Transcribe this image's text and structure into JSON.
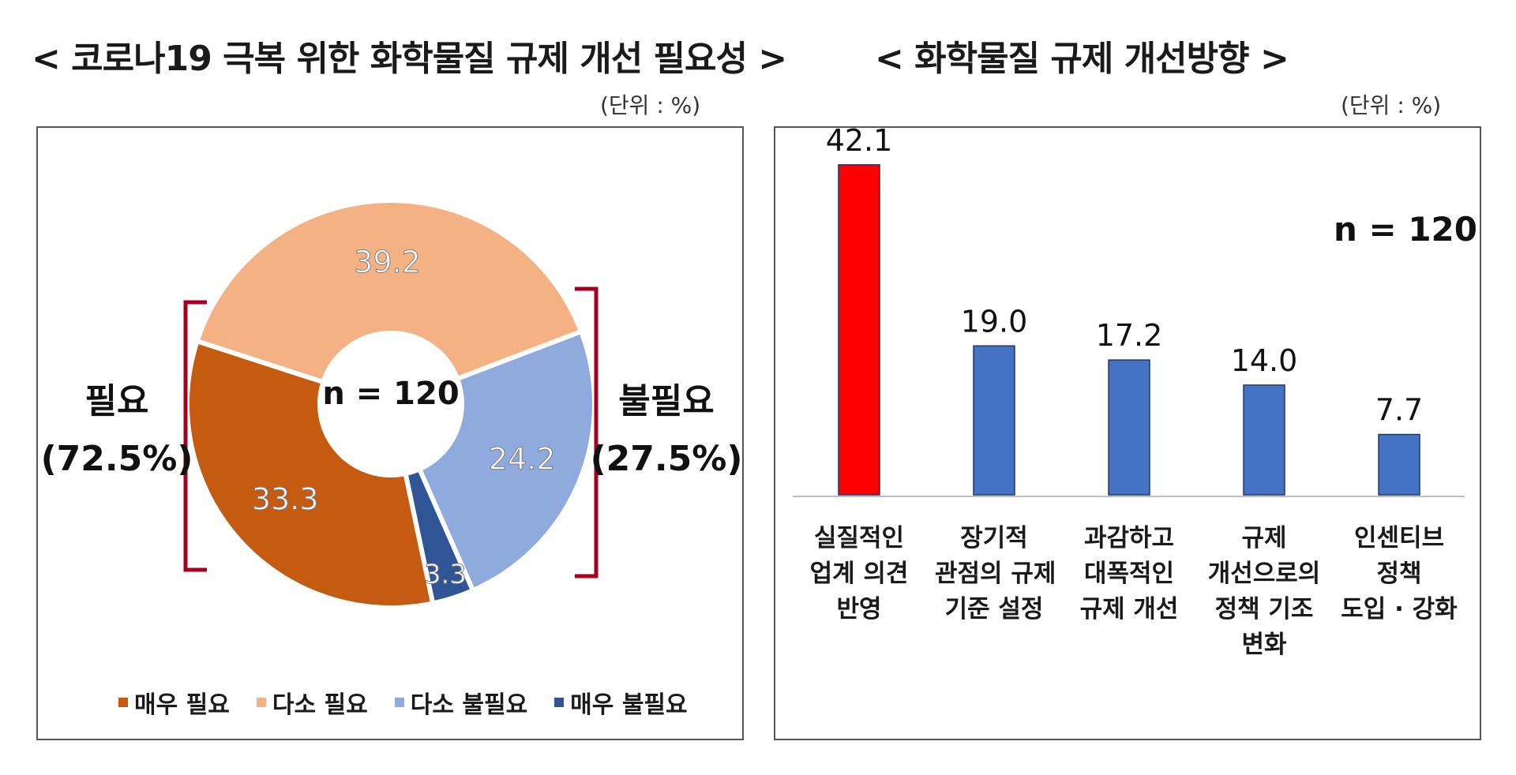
{
  "left": {
    "title": "< 코로나19 극복 위한 화학물질 규제 개선 필요성 >",
    "unit": "(단위 : %)",
    "n_label": "n = 120",
    "group_need_label": "필요",
    "group_need_pct": "(72.5%)",
    "group_noneed_label": "불필요",
    "group_noneed_pct": "(27.5%)"
  },
  "right": {
    "title": "< 화학물질 규제 개선방향 >",
    "unit": "(단위 : %)",
    "n_label": "n = 120"
  },
  "chart_data": [
    {
      "type": "pie",
      "title": "< 코로나19 극복 위한 화학물질 규제 개선 필요성 >",
      "categories": [
        "매우 필요",
        "다소 필요",
        "다소 불필요",
        "매우 불필요"
      ],
      "values": [
        33.3,
        39.2,
        24.2,
        3.3
      ],
      "value_labels": [
        "33.3",
        "39.2",
        "24.2",
        "3.3"
      ],
      "colors": [
        "#c55a11",
        "#f4b183",
        "#8faadc",
        "#2f5597"
      ],
      "legend": "bottom",
      "donut": true
    },
    {
      "type": "bar",
      "title": "< 화학물질 규제 개선방향 >",
      "categories": [
        [
          "실질적인",
          "업계 의견",
          "반영"
        ],
        [
          "장기적",
          "관점의 규제",
          "기준 설정"
        ],
        [
          "과감하고",
          "대폭적인",
          "규제 개선"
        ],
        [
          "규제",
          "개선으로의",
          "정책 기조",
          "변화"
        ],
        [
          "인센티브",
          "정책",
          "도입 · 강화"
        ]
      ],
      "values": [
        42.1,
        19.0,
        17.2,
        14.0,
        7.7
      ],
      "value_labels": [
        "42.1",
        "19.0",
        "17.2",
        "14.0",
        "7.7"
      ],
      "colors": [
        "#ff0000",
        "#4472c4",
        "#4472c4",
        "#4472c4",
        "#4472c4"
      ],
      "ylim": [
        0,
        45
      ],
      "grid": false
    }
  ]
}
